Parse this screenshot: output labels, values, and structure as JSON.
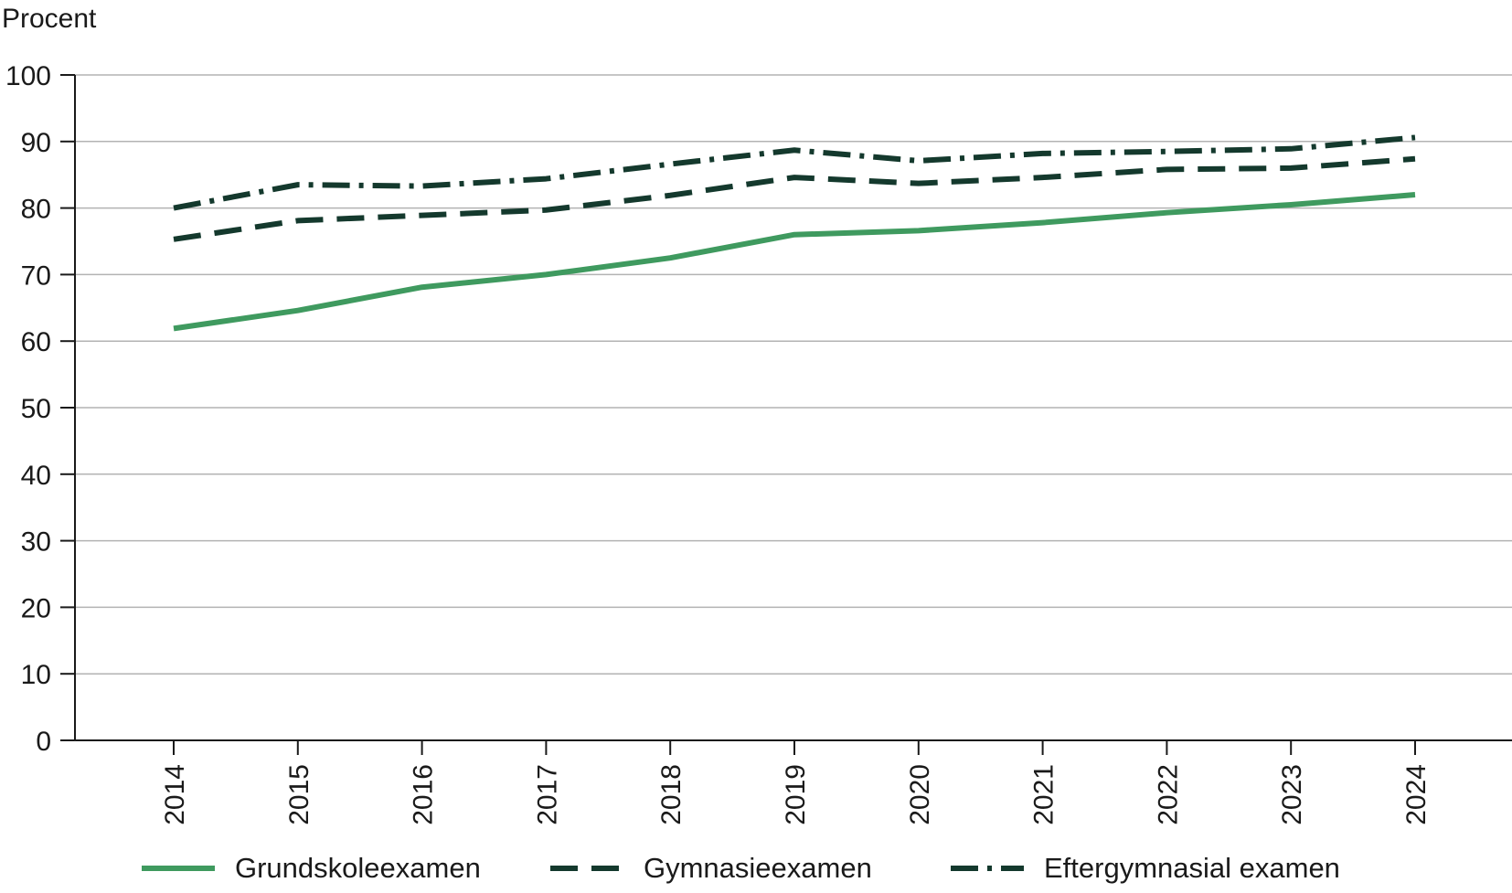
{
  "chart_data": {
    "type": "line",
    "ylabel": "Procent",
    "ylim": [
      0,
      100
    ],
    "yticks": [
      "0",
      "10",
      "20",
      "30",
      "40",
      "50",
      "60",
      "70",
      "80",
      "90",
      "100"
    ],
    "categories": [
      "2014",
      "2015",
      "2016",
      "2017",
      "2018",
      "2019",
      "2020",
      "2021",
      "2022",
      "2023",
      "2024"
    ],
    "grid": "horizontal",
    "legend": "bottom",
    "series": [
      {
        "name": "Grundskoleexamen",
        "color": "#3f9a5f",
        "style": "solid",
        "values": [
          61.9,
          64.6,
          68.1,
          70.0,
          72.5,
          76.0,
          76.6,
          77.8,
          79.3,
          80.5,
          82.0
        ]
      },
      {
        "name": "Gymnasieexamen",
        "color": "#14392d",
        "style": "dashed",
        "values": [
          75.3,
          78.1,
          78.9,
          79.7,
          81.9,
          84.6,
          83.7,
          84.6,
          85.8,
          86.0,
          87.4
        ]
      },
      {
        "name": "Eftergymnasial examen",
        "color": "#14392d",
        "style": "dashdot",
        "values": [
          80.0,
          83.5,
          83.3,
          84.4,
          86.6,
          88.7,
          87.1,
          88.2,
          88.5,
          88.9,
          90.6
        ]
      }
    ]
  }
}
